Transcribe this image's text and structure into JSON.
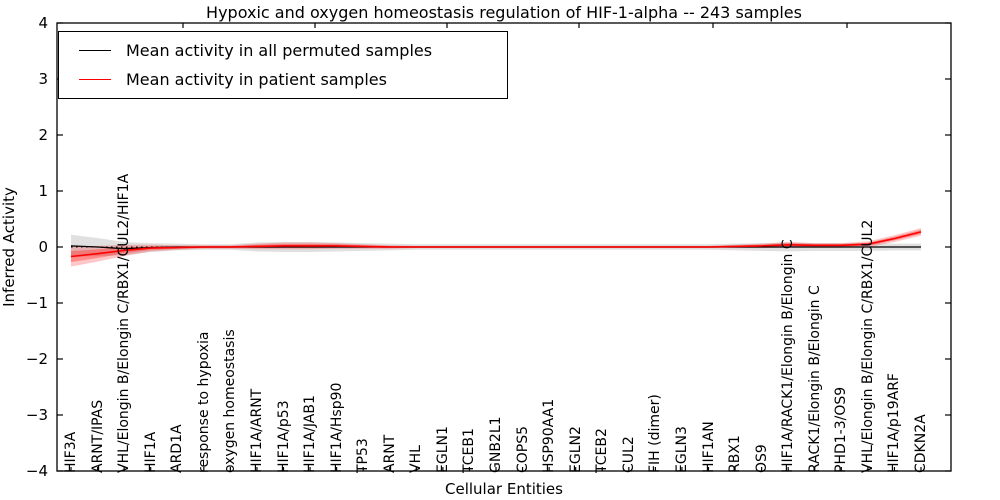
{
  "chart_data": {
    "type": "line",
    "title": "Hypoxic and oxygen homeostasis regulation of HIF-1-alpha -- 243 samples",
    "xlabel": "Cellular Entities",
    "ylabel": "Inferred Activity",
    "ylim": [
      -4,
      4
    ],
    "yticks": [
      4,
      3,
      2,
      1,
      0,
      -1,
      -2,
      -3,
      -4
    ],
    "yticklabels": [
      "4",
      "3",
      "2",
      "1",
      "0",
      "−1",
      "−2",
      "−3",
      "−4"
    ],
    "grid": false,
    "zero_line": "dotted",
    "legend_position": "upper left",
    "categories": [
      "HIF3A",
      "ARNT/IPAS",
      "VHL/Elongin B/Elongin C/RBX1/CUL2/HIF1A",
      "HIF1A",
      "ARD1A",
      "response to hypoxia",
      "oxygen homeostasis",
      "HIF1A/ARNT",
      "HIF1A/p53",
      "HIF1A/JAB1",
      "HIF1A/Hsp90",
      "TP53",
      "ARNT",
      "VHL",
      "EGLN1",
      "TCEB1",
      "GNB2L1",
      "COPS5",
      "HSP90AA1",
      "EGLN2",
      "TCEB2",
      "CUL2",
      "FIH (dimer)",
      "EGLN3",
      "HIF1AN",
      "RBX1",
      "OS9",
      "HIF1A/RACK1/Elongin B/Elongin C",
      "RACK1/Elongin B/Elongin C",
      "PHD1-3/OS9",
      "VHL/Elongin B/Elongin C/RBX1/CUL2",
      "HIF1A/p19ARF",
      "CDKN2A"
    ],
    "series": [
      {
        "name": "Mean activity in all permuted samples",
        "color": "#000000",
        "band_color": "#000000",
        "values": [
          0.02,
          0,
          -0.03,
          -0.01,
          0,
          0,
          0,
          0,
          0,
          0,
          0,
          0,
          0,
          0,
          0,
          0,
          0,
          0,
          0,
          0,
          0,
          0,
          0,
          0,
          0,
          0,
          0,
          0,
          0,
          0,
          0,
          0,
          0
        ],
        "band_halfwidth": [
          0.2,
          0.16,
          0.12,
          0.08,
          0.06,
          0.05,
          0.05,
          0.08,
          0.09,
          0.09,
          0.08,
          0.07,
          0.06,
          0.05,
          0.05,
          0.05,
          0.05,
          0.05,
          0.05,
          0.05,
          0.05,
          0.05,
          0.05,
          0.05,
          0.05,
          0.06,
          0.07,
          0.08,
          0.07,
          0.07,
          0.07,
          0.06,
          0.06
        ]
      },
      {
        "name": "Mean activity in patient samples",
        "color": "#ff0000",
        "band_color": "#ff0000",
        "values": [
          -0.17,
          -0.12,
          -0.06,
          -0.02,
          -0.01,
          0,
          0,
          0.01,
          0.02,
          0.02,
          0.02,
          0.01,
          0,
          0,
          0,
          0,
          0,
          0,
          0,
          0,
          0,
          0,
          0,
          0,
          0,
          0.01,
          0.02,
          0.04,
          0.03,
          0.03,
          0.05,
          0.15,
          0.27
        ],
        "band_halfwidth": [
          0.18,
          0.14,
          0.1,
          0.06,
          0.04,
          0.03,
          0.03,
          0.05,
          0.06,
          0.06,
          0.05,
          0.04,
          0.03,
          0.02,
          0.02,
          0.02,
          0.02,
          0.02,
          0.02,
          0.02,
          0.02,
          0.02,
          0.02,
          0.02,
          0.02,
          0.03,
          0.04,
          0.05,
          0.04,
          0.04,
          0.05,
          0.06,
          0.07
        ]
      }
    ]
  }
}
